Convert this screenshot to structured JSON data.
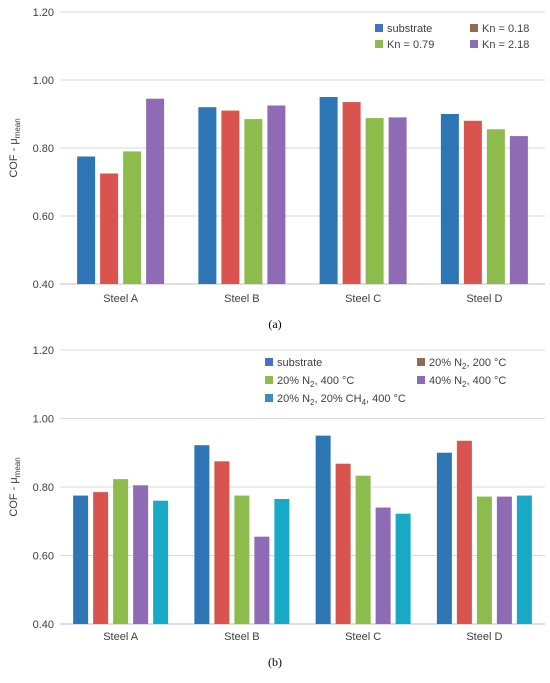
{
  "chart_data": [
    {
      "type": "bar",
      "caption": "(a)",
      "ylabel_main": "COF - μ",
      "ylabel_sub": "mean",
      "ylim": [
        0.4,
        1.2
      ],
      "yticks": [
        "1.20",
        "1.00",
        "0.80",
        "0.60",
        "0.40"
      ],
      "grid": true,
      "legend_position": "top-right",
      "categories": [
        "Steel A",
        "Steel B",
        "Steel C",
        "Steel D"
      ],
      "series": [
        {
          "name": "substrate",
          "color": "#2e75b6",
          "values": [
            0.775,
            0.92,
            0.95,
            0.9
          ]
        },
        {
          "name": "Kn = 0.18",
          "color": "#d9534f",
          "values": [
            0.725,
            0.91,
            0.935,
            0.88
          ]
        },
        {
          "name": "Kn = 0.79",
          "color": "#8dbb4c",
          "values": [
            0.79,
            0.885,
            0.888,
            0.855
          ]
        },
        {
          "name": "Kn = 2.18",
          "color": "#8e6bb4",
          "values": [
            0.945,
            0.925,
            0.89,
            0.835
          ]
        }
      ],
      "legend": [
        {
          "text": "substrate",
          "sub": "",
          "tail": "",
          "color": "#4472c4"
        },
        {
          "text": "Kn = 0.18",
          "sub": "",
          "tail": "",
          "color": "#8c6d4f"
        },
        {
          "text": "Kn = 0.79",
          "sub": "",
          "tail": "",
          "color": "#8dbb4c"
        },
        {
          "text": "Kn = 2.18",
          "sub": "",
          "tail": "",
          "color": "#8e6bb4"
        }
      ]
    },
    {
      "type": "bar",
      "caption": "(b)",
      "ylabel_main": "COF - μ",
      "ylabel_sub": "mean",
      "ylim": [
        0.4,
        1.2
      ],
      "yticks": [
        "1.20",
        "1.00",
        "0.80",
        "0.60",
        "0.40"
      ],
      "grid": true,
      "legend_position": "top-right",
      "categories": [
        "Steel A",
        "Steel B",
        "Steel C",
        "Steel D"
      ],
      "series": [
        {
          "name": "substrate",
          "color": "#2e75b6",
          "values": [
            0.775,
            0.922,
            0.95,
            0.9
          ]
        },
        {
          "name": "20% N2, 200 °C",
          "color": "#d9534f",
          "values": [
            0.785,
            0.875,
            0.868,
            0.935
          ]
        },
        {
          "name": "20% N2, 400 °C",
          "color": "#8dbb4c",
          "values": [
            0.823,
            0.775,
            0.833,
            0.772
          ]
        },
        {
          "name": "40% N2, 400 °C",
          "color": "#8e6bb4",
          "values": [
            0.805,
            0.655,
            0.74,
            0.772
          ]
        },
        {
          "name": "20% N2, 20% CH4, 400 °C",
          "color": "#17a9c6",
          "values": [
            0.76,
            0.765,
            0.722,
            0.775
          ]
        }
      ],
      "legend": [
        {
          "text": "substrate",
          "sub": "",
          "tail": "",
          "color": "#4472c4"
        },
        {
          "text": "20% N",
          "sub": "2",
          "tail": ", 200 °C",
          "color": "#8c6d4f"
        },
        {
          "text": "20% N",
          "sub": "2",
          "tail": ", 400 °C",
          "color": "#8dbb4c"
        },
        {
          "text": "40% N",
          "sub": "2",
          "tail": ", 400 °C",
          "color": "#8e6bb4"
        },
        {
          "text": "20% N",
          "sub": "2",
          "tail": ", 20% CH",
          "sub2": "4",
          "tail2": ", 400 °C",
          "color": "#3c8dbd"
        }
      ]
    }
  ]
}
